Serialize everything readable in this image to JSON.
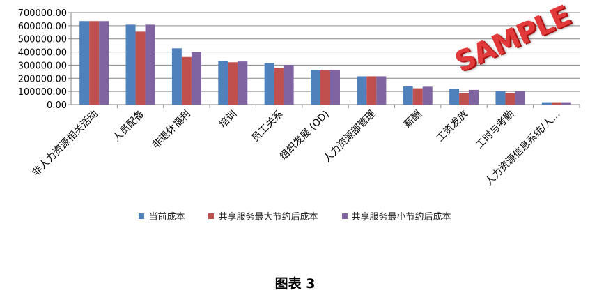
{
  "chart_data": {
    "type": "bar",
    "categories": [
      "非人力资源相关活动",
      "人员配备",
      "非退休福利",
      "培训",
      "员工关系",
      "组织发展 (OD)",
      "人力资源部管理",
      "薪酬",
      "工资发放",
      "工时与考勤",
      "人力资源信息系统/人…"
    ],
    "series": [
      {
        "name": "当前成本",
        "color": "#4f81bd",
        "values": [
          635000,
          608000,
          428000,
          330000,
          315000,
          265000,
          215000,
          138000,
          118000,
          102000,
          18000
        ]
      },
      {
        "name": "共享服务最大节约后成本",
        "color": "#c0504d",
        "values": [
          635000,
          555000,
          362000,
          322000,
          280000,
          260000,
          215000,
          124000,
          86000,
          86000,
          18000
        ]
      },
      {
        "name": "共享服务最小节约后成本",
        "color": "#8064a2",
        "values": [
          635000,
          608000,
          400000,
          328000,
          302000,
          265000,
          215000,
          136000,
          112000,
          102000,
          18000
        ]
      }
    ],
    "y_ticks": [
      "0.00",
      "100000.00",
      "200000.00",
      "300000.00",
      "400000.00",
      "500000.00",
      "600000.00",
      "700000.00"
    ],
    "ylim": [
      0,
      700000
    ],
    "grid": true,
    "legend_position": "bottom"
  },
  "caption": "图表 3",
  "watermark": "SAMPLE"
}
